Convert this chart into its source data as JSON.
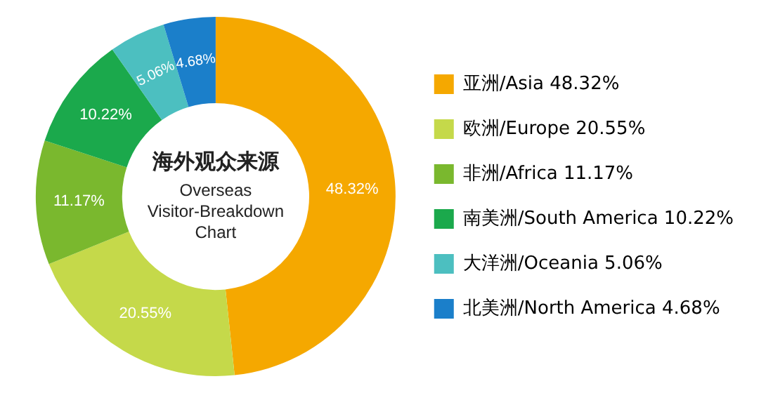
{
  "chart_data": {
    "type": "donut",
    "title": "海外观众来源",
    "subtitle": "Overseas Visitor-Breakdown Chart",
    "categories": [
      "亚洲/Asia",
      "欧洲/Europe",
      "非洲/Africa",
      "南美洲/South America",
      "大洋洲/Oceania",
      "北美洲/North America"
    ],
    "values": [
      48.32,
      20.55,
      11.17,
      10.22,
      5.06,
      4.68
    ],
    "value_labels": [
      "48.32%",
      "20.55%",
      "11.17%",
      "10.22%",
      "5.06%",
      "4.68%"
    ],
    "colors": [
      "#f5a800",
      "#c5d94a",
      "#7ab82e",
      "#1ba94c",
      "#4cbfc0",
      "#1b7fca"
    ],
    "legend": "right"
  }
}
